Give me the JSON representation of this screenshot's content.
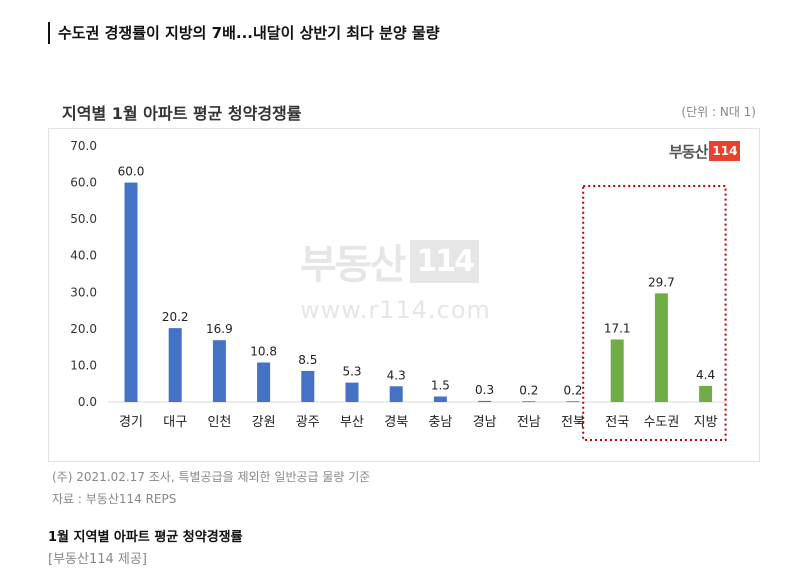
{
  "headline": "수도권 경쟁률이 지방의 7배...내달이 상반기 최다 분양 물량",
  "chart_title": "지역별 1월 아파트 평균 청약경쟁률",
  "unit_label": "(단위 : N대 1)",
  "logo": {
    "text": "부동산",
    "box": "114"
  },
  "watermark": {
    "text": "부동산",
    "box": "114",
    "url": "www.r114.com"
  },
  "note": "(주) 2021.02.17 조사, 특별공급을 제외한 일반공급 물량 기준",
  "source": "자료 : 부동산114 REPS",
  "caption": "1월 지역별 아파트 평균 청약경쟁률",
  "credit": "[부동산114 제공]",
  "colors": {
    "blue": "#4472c4",
    "green": "#70ad47",
    "highlight": "#c00000"
  },
  "chart_data": {
    "type": "bar",
    "categories": [
      "경기",
      "대구",
      "인천",
      "강원",
      "광주",
      "부산",
      "경북",
      "충남",
      "경남",
      "전남",
      "전북",
      "전국",
      "수도권",
      "지방"
    ],
    "values": [
      60.0,
      20.2,
      16.9,
      10.8,
      8.5,
      5.3,
      4.3,
      1.5,
      0.3,
      0.2,
      0.2,
      17.1,
      29.7,
      4.4
    ],
    "bar_colors": [
      "#4472c4",
      "#4472c4",
      "#4472c4",
      "#4472c4",
      "#4472c4",
      "#4472c4",
      "#4472c4",
      "#4472c4",
      "#4472c4",
      "#4472c4",
      "#4472c4",
      "#70ad47",
      "#70ad47",
      "#70ad47"
    ],
    "yticks": [
      "0.0",
      "10.0",
      "20.0",
      "30.0",
      "40.0",
      "50.0",
      "60.0",
      "70.0"
    ],
    "ylim": [
      0,
      70
    ],
    "highlighted_categories": [
      "전국",
      "수도권",
      "지방"
    ],
    "grid": false
  }
}
